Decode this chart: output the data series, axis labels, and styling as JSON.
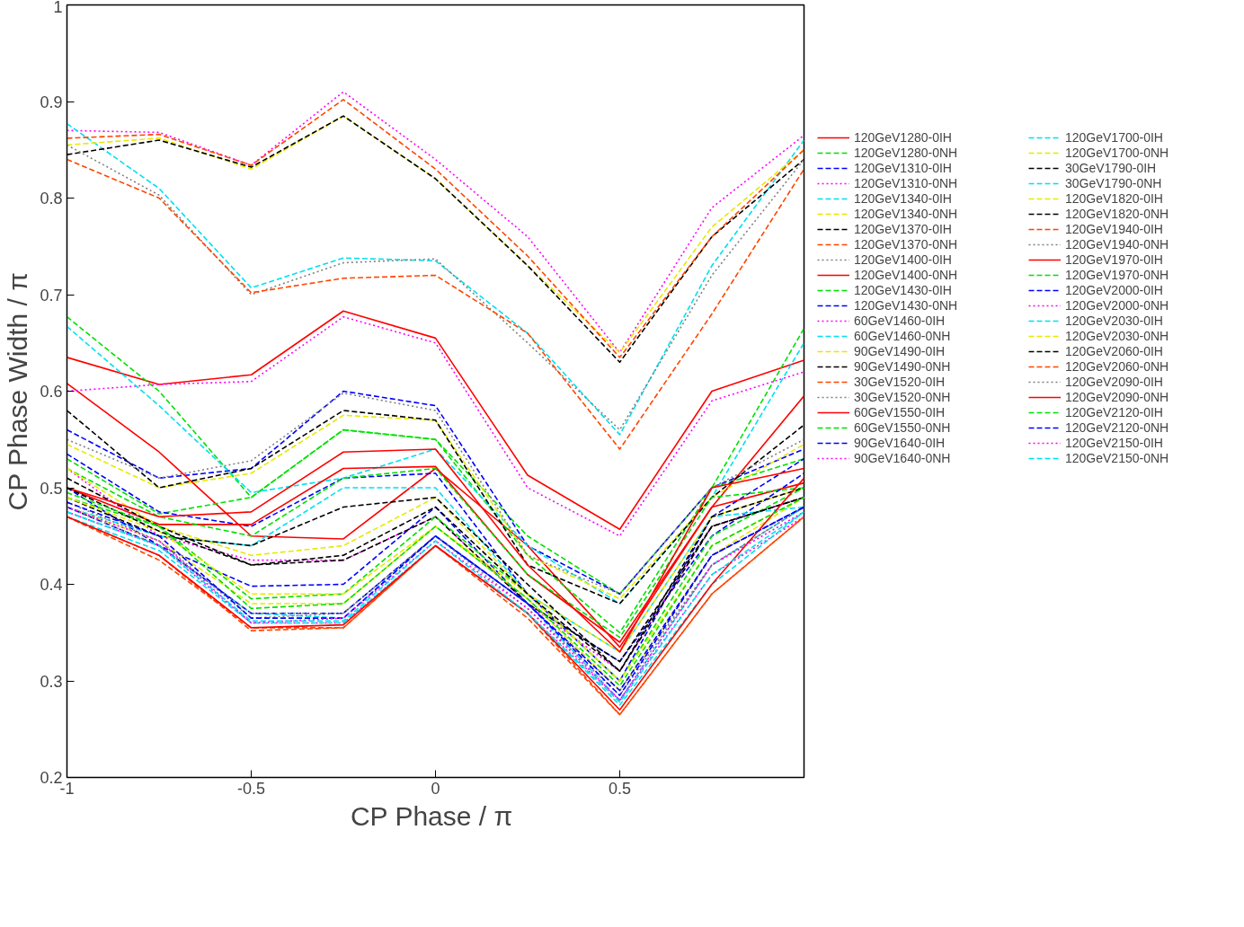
{
  "chart_data": {
    "type": "line",
    "xlabel": "CP Phase  / π",
    "ylabel": "CP Phase Width / π",
    "x": [
      -1,
      -0.75,
      -0.5,
      -0.25,
      0,
      0.25,
      0.5,
      0.75,
      1
    ],
    "xlim": [
      -1,
      1
    ],
    "xticks": [
      -1,
      -0.5,
      0,
      0.5
    ],
    "ylim": [
      0.2,
      1
    ],
    "yticks": [
      0.2,
      0.3,
      0.4,
      0.5,
      0.6,
      0.7,
      0.8,
      0.9,
      1
    ],
    "grid": false,
    "legend": "right",
    "marker": "none",
    "series": [
      {
        "name": "120GeV1280-0IH",
        "color": "#ff0000",
        "line_style": "solid",
        "values": [
          0.635,
          0.607,
          0.617,
          0.683,
          0.655,
          0.513,
          0.457,
          0.6,
          0.632
        ]
      },
      {
        "name": "120GeV1280-0NH",
        "color": "#00e000",
        "line_style": "dashed",
        "values": [
          0.677,
          0.6,
          0.49,
          0.56,
          0.55,
          0.45,
          0.39,
          0.5,
          0.665
        ]
      },
      {
        "name": "120GeV1310-0IH",
        "color": "#0000ff",
        "line_style": "dashed",
        "values": [
          0.56,
          0.51,
          0.52,
          0.6,
          0.585,
          0.44,
          0.39,
          0.5,
          0.54
        ]
      },
      {
        "name": "120GeV1310-0NH",
        "color": "#ff00ff",
        "line_style": "dotted",
        "values": [
          0.87,
          0.868,
          0.834,
          0.91,
          0.84,
          0.76,
          0.64,
          0.79,
          0.865
        ]
      },
      {
        "name": "120GeV1340-0IH",
        "color": "#00e0f0",
        "line_style": "dashed",
        "values": [
          0.877,
          0.81,
          0.707,
          0.738,
          0.735,
          0.66,
          0.555,
          0.73,
          0.86
        ]
      },
      {
        "name": "120GeV1340-0NH",
        "color": "#e8e800",
        "line_style": "dashed",
        "values": [
          0.855,
          0.862,
          0.83,
          0.885,
          0.82,
          0.73,
          0.64,
          0.77,
          0.85
        ]
      },
      {
        "name": "120GeV1370-0IH",
        "color": "#000000",
        "line_style": "dashed",
        "values": [
          0.845,
          0.86,
          0.832,
          0.885,
          0.82,
          0.73,
          0.63,
          0.76,
          0.84
        ]
      },
      {
        "name": "120GeV1370-0NH",
        "color": "#ff4500",
        "line_style": "dashed",
        "values": [
          0.862,
          0.866,
          0.834,
          0.902,
          0.83,
          0.74,
          0.635,
          0.76,
          0.85
        ]
      },
      {
        "name": "120GeV1400-0IH",
        "color": "#808080",
        "line_style": "dotted",
        "values": [
          0.855,
          0.803,
          0.7,
          0.733,
          0.737,
          0.65,
          0.56,
          0.72,
          0.84
        ]
      },
      {
        "name": "120GeV1400-0NH",
        "color": "#ff0000",
        "line_style": "solid",
        "values": [
          0.608,
          0.537,
          0.45,
          0.447,
          0.52,
          0.44,
          0.335,
          0.48,
          0.595
        ]
      },
      {
        "name": "120GeV1430-0IH",
        "color": "#00e000",
        "line_style": "dashed",
        "values": [
          0.53,
          0.473,
          0.49,
          0.56,
          0.55,
          0.43,
          0.35,
          0.5,
          0.53
        ]
      },
      {
        "name": "120GeV1430-0NH",
        "color": "#0000ff",
        "line_style": "dashed",
        "values": [
          0.535,
          0.475,
          0.46,
          0.51,
          0.515,
          0.39,
          0.3,
          0.47,
          0.53
        ]
      },
      {
        "name": "60GeV1460-0IH",
        "color": "#ff00ff",
        "line_style": "dotted",
        "values": [
          0.6,
          0.607,
          0.61,
          0.677,
          0.65,
          0.5,
          0.45,
          0.59,
          0.62
        ]
      },
      {
        "name": "60GeV1460-0NH",
        "color": "#00e0f0",
        "line_style": "dashed",
        "values": [
          0.667,
          0.585,
          0.495,
          0.51,
          0.54,
          0.44,
          0.38,
          0.49,
          0.65
        ]
      },
      {
        "name": "90GeV1490-0IH",
        "color": "#e8e800",
        "line_style": "dashed",
        "values": [
          0.545,
          0.5,
          0.515,
          0.575,
          0.57,
          0.43,
          0.385,
          0.49,
          0.545
        ]
      },
      {
        "name": "90GeV1490-0NH",
        "color": "#000000",
        "line_style": "dashed",
        "values": [
          0.58,
          0.5,
          0.52,
          0.58,
          0.57,
          0.42,
          0.38,
          0.49,
          0.565
        ]
      },
      {
        "name": "30GeV1520-0IH",
        "color": "#ff4500",
        "line_style": "dashed",
        "values": [
          0.84,
          0.8,
          0.702,
          0.717,
          0.72,
          0.66,
          0.54,
          0.68,
          0.83
        ]
      },
      {
        "name": "30GeV1520-0NH",
        "color": "#808080",
        "line_style": "dotted",
        "values": [
          0.55,
          0.51,
          0.528,
          0.598,
          0.58,
          0.43,
          0.39,
          0.5,
          0.55
        ]
      },
      {
        "name": "60GeV1550-0IH",
        "color": "#ff0000",
        "line_style": "solid",
        "values": [
          0.5,
          0.462,
          0.462,
          0.52,
          0.522,
          0.41,
          0.34,
          0.48,
          0.505
        ]
      },
      {
        "name": "60GeV1550-0NH",
        "color": "#00e000",
        "line_style": "dashed",
        "values": [
          0.52,
          0.47,
          0.45,
          0.51,
          0.52,
          0.41,
          0.345,
          0.49,
          0.5
        ]
      },
      {
        "name": "90GeV1640-0IH",
        "color": "#0000ff",
        "line_style": "dashed",
        "values": [
          0.5,
          0.44,
          0.398,
          0.4,
          0.48,
          0.38,
          0.32,
          0.45,
          0.515
        ]
      },
      {
        "name": "90GeV1640-0NH",
        "color": "#ff00ff",
        "line_style": "dotted",
        "values": [
          0.52,
          0.45,
          0.425,
          0.425,
          0.47,
          0.38,
          0.31,
          0.46,
          0.49
        ]
      },
      {
        "name": "120GeV1700-0IH",
        "color": "#00e0f0",
        "line_style": "dashed",
        "values": [
          0.48,
          0.45,
          0.44,
          0.5,
          0.5,
          0.39,
          0.33,
          0.47,
          0.48
        ]
      },
      {
        "name": "120GeV1700-0NH",
        "color": "#e8e800",
        "line_style": "dashed",
        "values": [
          0.52,
          0.46,
          0.43,
          0.44,
          0.49,
          0.39,
          0.33,
          0.47,
          0.5
        ]
      },
      {
        "name": "30GeV1790-0IH",
        "color": "#000000",
        "line_style": "dashed",
        "values": [
          0.51,
          0.46,
          0.42,
          0.425,
          0.47,
          0.38,
          0.32,
          0.46,
          0.49
        ]
      },
      {
        "name": "30GeV1790-0NH",
        "color": "#00e0f0",
        "line_style": "dashed",
        "values": [
          0.475,
          0.44,
          0.37,
          0.365,
          0.45,
          0.38,
          0.28,
          0.42,
          0.48
        ]
      },
      {
        "name": "120GeV1820-0IH",
        "color": "#e8e800",
        "line_style": "dashed",
        "values": [
          0.48,
          0.445,
          0.38,
          0.38,
          0.46,
          0.385,
          0.29,
          0.43,
          0.49
        ]
      },
      {
        "name": "120GeV1820-0NH",
        "color": "#000000",
        "line_style": "dashed",
        "values": [
          0.49,
          0.45,
          0.44,
          0.48,
          0.49,
          0.4,
          0.31,
          0.47,
          0.5
        ]
      },
      {
        "name": "120GeV1940-0IH",
        "color": "#ff4500",
        "line_style": "dashed",
        "values": [
          0.47,
          0.43,
          0.352,
          0.355,
          0.44,
          0.37,
          0.265,
          0.39,
          0.47
        ]
      },
      {
        "name": "120GeV1940-0NH",
        "color": "#808080",
        "line_style": "dotted",
        "values": [
          0.485,
          0.445,
          0.365,
          0.37,
          0.45,
          0.38,
          0.29,
          0.42,
          0.48
        ]
      },
      {
        "name": "120GeV1970-0IH",
        "color": "#ff0000",
        "line_style": "solid",
        "values": [
          0.5,
          0.47,
          0.475,
          0.537,
          0.54,
          0.42,
          0.33,
          0.5,
          0.52
        ]
      },
      {
        "name": "120GeV1970-0NH",
        "color": "#00e000",
        "line_style": "dashed",
        "values": [
          0.49,
          0.46,
          0.385,
          0.39,
          0.47,
          0.39,
          0.3,
          0.45,
          0.5
        ]
      },
      {
        "name": "120GeV2000-0IH",
        "color": "#0000ff",
        "line_style": "dashed",
        "values": [
          0.48,
          0.44,
          0.37,
          0.37,
          0.45,
          0.38,
          0.29,
          0.43,
          0.48
        ]
      },
      {
        "name": "120GeV2000-0NH",
        "color": "#ff00ff",
        "line_style": "dotted",
        "values": [
          0.475,
          0.44,
          0.36,
          0.36,
          0.44,
          0.37,
          0.28,
          0.41,
          0.47
        ]
      },
      {
        "name": "120GeV2030-0IH",
        "color": "#00e0f0",
        "line_style": "dashed",
        "values": [
          0.47,
          0.435,
          0.36,
          0.36,
          0.44,
          0.37,
          0.275,
          0.4,
          0.475
        ]
      },
      {
        "name": "120GeV2030-0NH",
        "color": "#e8e800",
        "line_style": "dashed",
        "values": [
          0.49,
          0.455,
          0.39,
          0.39,
          0.46,
          0.39,
          0.3,
          0.44,
          0.49
        ]
      },
      {
        "name": "120GeV2060-0IH",
        "color": "#000000",
        "line_style": "dashed",
        "values": [
          0.5,
          0.455,
          0.42,
          0.43,
          0.48,
          0.39,
          0.31,
          0.46,
          0.49
        ]
      },
      {
        "name": "120GeV2060-0NH",
        "color": "#ff4500",
        "line_style": "dashed",
        "values": [
          0.47,
          0.425,
          0.355,
          0.355,
          0.44,
          0.365,
          0.265,
          0.39,
          0.47
        ]
      },
      {
        "name": "120GeV2090-0IH",
        "color": "#808080",
        "line_style": "dotted",
        "values": [
          0.48,
          0.44,
          0.37,
          0.37,
          0.45,
          0.375,
          0.285,
          0.42,
          0.48
        ]
      },
      {
        "name": "120GeV2090-0NH",
        "color": "#ff0000",
        "line_style": "solid",
        "values": [
          0.47,
          0.43,
          0.355,
          0.358,
          0.44,
          0.37,
          0.27,
          0.4,
          0.51
        ]
      },
      {
        "name": "120GeV2120-0IH",
        "color": "#00e000",
        "line_style": "dashed",
        "values": [
          0.495,
          0.46,
          0.375,
          0.38,
          0.46,
          0.385,
          0.295,
          0.44,
          0.49
        ]
      },
      {
        "name": "120GeV2120-0NH",
        "color": "#0000ff",
        "line_style": "dashed",
        "values": [
          0.485,
          0.45,
          0.365,
          0.365,
          0.45,
          0.38,
          0.285,
          0.43,
          0.48
        ]
      },
      {
        "name": "120GeV2150-0IH",
        "color": "#ff00ff",
        "line_style": "dotted",
        "values": [
          0.48,
          0.445,
          0.36,
          0.365,
          0.445,
          0.375,
          0.28,
          0.42,
          0.475
        ]
      },
      {
        "name": "120GeV2150-0NH",
        "color": "#00e0f0",
        "line_style": "dashed",
        "values": [
          0.475,
          0.44,
          0.362,
          0.362,
          0.445,
          0.37,
          0.278,
          0.41,
          0.475
        ]
      }
    ]
  }
}
